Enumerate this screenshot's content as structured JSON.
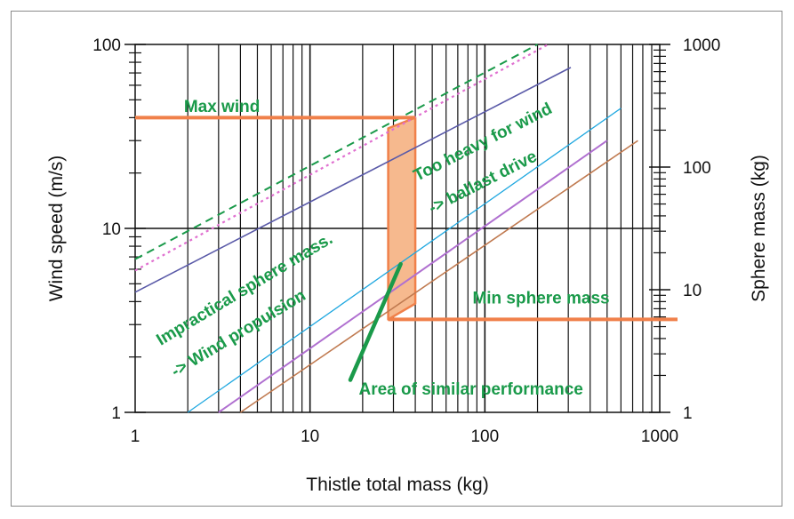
{
  "chart_data": {
    "type": "line",
    "xlabel": "Thistle total mass (kg)",
    "ylabel": "Wind speed (m/s)",
    "y2label": "Sphere mass (kg)",
    "xscale": "log",
    "yscale": "log",
    "xlim": [
      1,
      1000
    ],
    "ylim": [
      1,
      100
    ],
    "y2lim": [
      1,
      1000
    ],
    "grid": "vertical log minor lines, horizontal decade lines",
    "x_ticks": [
      "1",
      "10",
      "100",
      "1000"
    ],
    "y_ticks": [
      "1",
      "10",
      "100"
    ],
    "y2_ticks": [
      "1",
      "10",
      "100",
      "1000"
    ],
    "colors": {
      "orange": "#f0804a",
      "orange_fill": "#f6b98e",
      "green": "#1a9a4a",
      "navy": "#5a5aa8",
      "magenta": "#e070d0",
      "cyan": "#20a8e0",
      "violet": "#b070d0",
      "brown": "#c07a50"
    },
    "series": [
      {
        "style": "green-dashed",
        "x": [
          1,
          200
        ],
        "y": [
          6.8,
          100
        ]
      },
      {
        "style": "magenta-dotted",
        "x": [
          1,
          230
        ],
        "y": [
          5.9,
          100
        ]
      },
      {
        "style": "navy",
        "x": [
          1,
          310
        ],
        "y": [
          4.5,
          75
        ]
      },
      {
        "style": "cyan",
        "x": [
          2,
          600
        ],
        "y": [
          1,
          45
        ]
      },
      {
        "style": "violet",
        "x": [
          3,
          500
        ],
        "y": [
          1,
          30
        ]
      },
      {
        "style": "brown",
        "x": [
          4,
          750
        ],
        "y": [
          1,
          30
        ]
      }
    ],
    "max_wind_line": {
      "x": [
        1,
        40
      ],
      "y": [
        40,
        40
      ]
    },
    "min_sphere_mass_line": {
      "x": [
        28,
        1000
      ],
      "y": [
        3.2,
        3.2
      ]
    },
    "shaded_region": {
      "x": [
        28,
        40,
        40,
        28
      ],
      "y": [
        35,
        40,
        3.9,
        3.2
      ]
    },
    "similar_performance_line": {
      "x": [
        17,
        33
      ],
      "y": [
        1.5,
        6.4
      ]
    },
    "annotations": [
      {
        "text": "Max  wind",
        "x": 1.9,
        "y": 43,
        "angle": 0
      },
      {
        "text": "Too  heavy  for  wind",
        "x": 41,
        "y": 18,
        "angle": -27
      },
      {
        "text": "-> ballast  drive",
        "x": 50,
        "y": 12,
        "angle": -27
      },
      {
        "text": "Impractical  sphere  mass.",
        "x": 1.4,
        "y": 2.3,
        "angle": -31
      },
      {
        "text": "-> Wind  propulsion",
        "x": 1.7,
        "y": 1.55,
        "angle": -31
      },
      {
        "text": "Min  sphere  mass",
        "x": 85,
        "y": 3.9,
        "angle": 0
      },
      {
        "text": "Area  of  similar  performance",
        "x": 19,
        "y": 1.25,
        "angle": 0
      }
    ]
  }
}
